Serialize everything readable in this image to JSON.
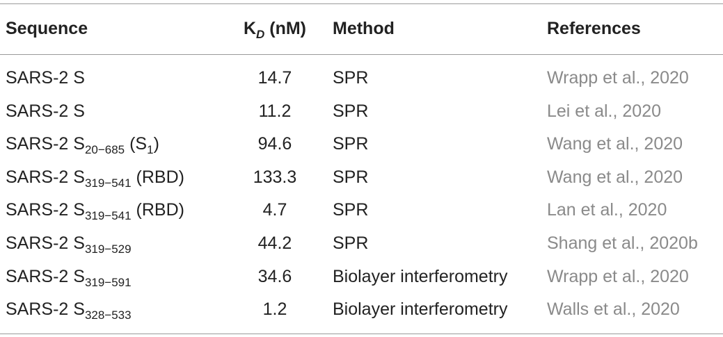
{
  "table": {
    "header": [
      "Sequence",
      {
        "parts": [
          {
            "text": "K"
          },
          {
            "sub": "D"
          },
          {
            "text": " (nM)"
          }
        ]
      },
      "Method",
      "References"
    ],
    "rows": [
      [
        {
          "parts": [
            {
              "text": "SARS-2 S"
            }
          ]
        },
        14.7,
        "SPR",
        "Wrapp et al., 2020"
      ],
      [
        {
          "parts": [
            {
              "text": "SARS-2 S"
            }
          ]
        },
        11.2,
        "SPR",
        "Lei et al., 2020"
      ],
      [
        {
          "parts": [
            {
              "text": "SARS-2 S"
            },
            {
              "sub": "20−685"
            },
            {
              "text": " (S"
            },
            {
              "sub": "1"
            },
            {
              "text": ")"
            }
          ]
        },
        94.6,
        "SPR",
        "Wang et al., 2020"
      ],
      [
        {
          "parts": [
            {
              "text": "SARS-2 S"
            },
            {
              "sub": "319−541"
            },
            {
              "text": " (RBD)"
            }
          ]
        },
        133.3,
        "SPR",
        "Wang et al., 2020"
      ],
      [
        {
          "parts": [
            {
              "text": "SARS-2 S"
            },
            {
              "sub": "319−541"
            },
            {
              "text": " (RBD)"
            }
          ]
        },
        4.7,
        "SPR",
        "Lan et al., 2020"
      ],
      [
        {
          "parts": [
            {
              "text": "SARS-2 S"
            },
            {
              "sub": "319−529"
            }
          ]
        },
        44.2,
        "SPR",
        "Shang et al., 2020b"
      ],
      [
        {
          "parts": [
            {
              "text": "SARS-2 S"
            },
            {
              "sub": "319−591"
            }
          ]
        },
        34.6,
        "Biolayer interferometry",
        "Wrapp et al., 2020"
      ],
      [
        {
          "parts": [
            {
              "text": "SARS-2 S"
            },
            {
              "sub": "328−533"
            }
          ]
        },
        1.2,
        "Biolayer interferometry",
        "Walls et al., 2020"
      ]
    ]
  }
}
